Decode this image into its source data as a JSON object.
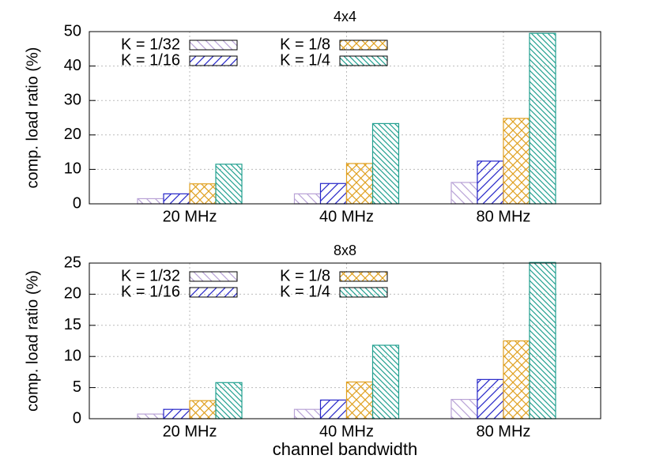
{
  "chart_data": [
    {
      "type": "bar",
      "title": "4x4",
      "ylabel": "comp. load ratio (%)",
      "categories": [
        "20 MHz",
        "40 MHz",
        "80 MHz"
      ],
      "series": [
        {
          "name": "K = 1/32",
          "color": "#b9a3d6",
          "values": [
            1.5,
            2.9,
            6.2
          ]
        },
        {
          "name": "K = 1/16",
          "color": "#2626c8",
          "values": [
            2.9,
            5.9,
            12.4
          ]
        },
        {
          "name": "K = 1/8",
          "color": "#e0a020",
          "values": [
            5.8,
            11.7,
            24.8
          ]
        },
        {
          "name": "K = 1/4",
          "color": "#22a090",
          "values": [
            11.5,
            23.3,
            49.5
          ]
        }
      ],
      "ylim": [
        0,
        50
      ],
      "yticks": [
        0,
        10,
        20,
        30,
        40,
        50
      ],
      "grid": true,
      "legend": "upper left"
    },
    {
      "type": "bar",
      "title": "8x8",
      "ylabel": "comp. load ratio (%)",
      "xlabel": "channel bandwidth",
      "categories": [
        "20 MHz",
        "40 MHz",
        "80 MHz"
      ],
      "series": [
        {
          "name": "K = 1/32",
          "color": "#b9a3d6",
          "values": [
            0.75,
            1.5,
            3.1
          ]
        },
        {
          "name": "K = 1/16",
          "color": "#2626c8",
          "values": [
            1.5,
            3.0,
            6.3
          ]
        },
        {
          "name": "K = 1/8",
          "color": "#e0a020",
          "values": [
            2.9,
            5.9,
            12.5
          ]
        },
        {
          "name": "K = 1/4",
          "color": "#22a090",
          "values": [
            5.8,
            11.8,
            25.1
          ]
        }
      ],
      "ylim": [
        0,
        25
      ],
      "yticks": [
        0,
        5,
        10,
        15,
        20,
        25
      ],
      "grid": true,
      "legend": "upper left"
    }
  ]
}
